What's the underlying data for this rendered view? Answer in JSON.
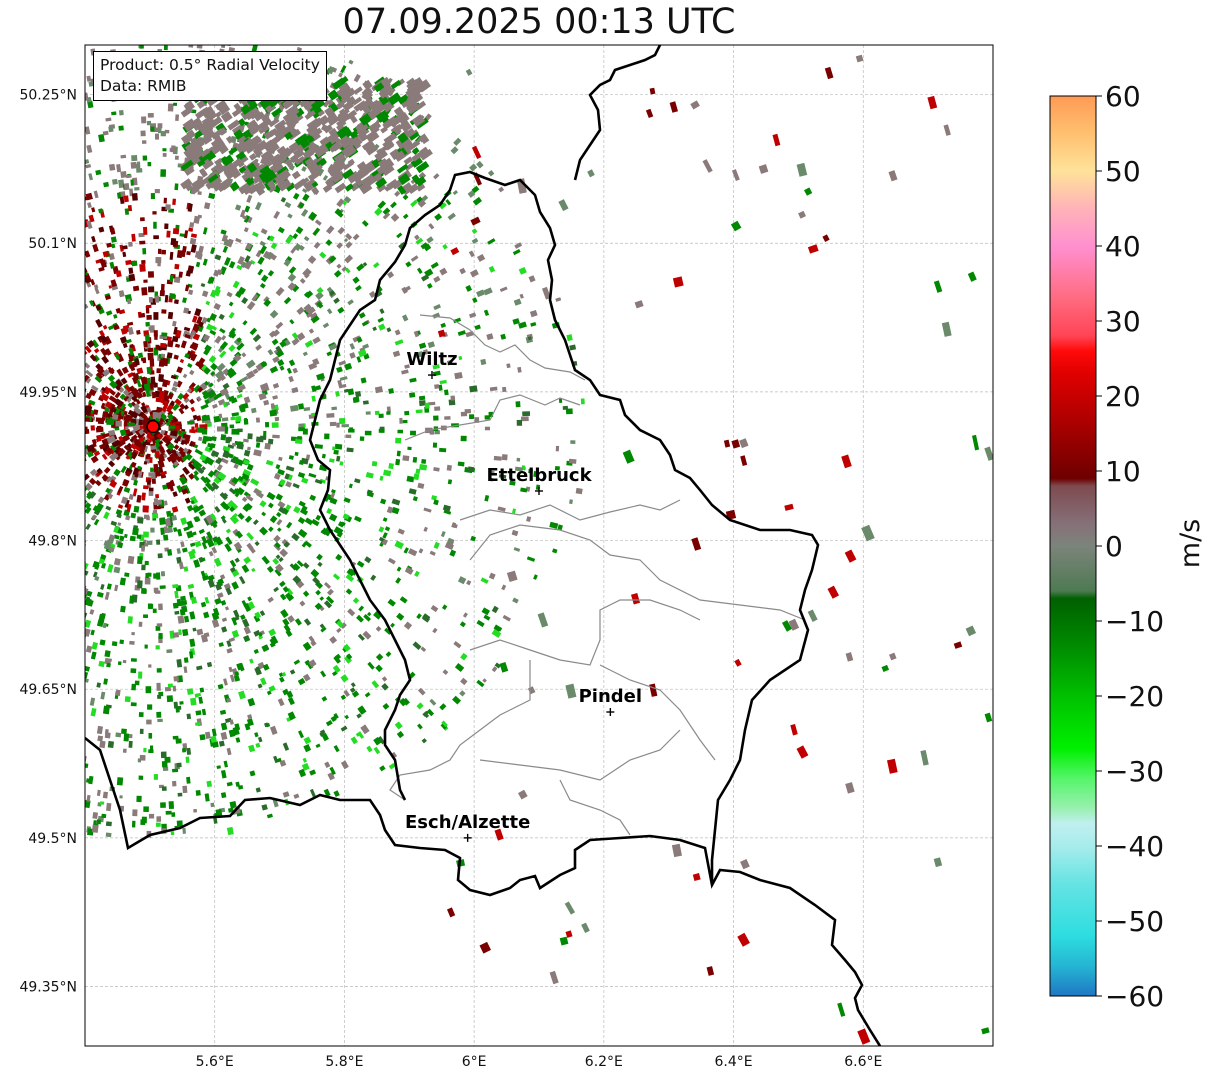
{
  "title": "07.09.2025 00:13 UTC",
  "info_box": {
    "product": "Product: 0.5° Radial Velocity",
    "data_source": "Data: RMIB"
  },
  "map": {
    "lon_range": [
      5.4,
      6.8
    ],
    "lat_range": [
      49.29,
      50.3
    ],
    "lon_ticks": [
      {
        "value": 5.6,
        "label": "5.6°E"
      },
      {
        "value": 5.8,
        "label": "5.8°E"
      },
      {
        "value": 6.0,
        "label": "6°E"
      },
      {
        "value": 6.2,
        "label": "6.2°E"
      },
      {
        "value": 6.4,
        "label": "6.4°E"
      },
      {
        "value": 6.6,
        "label": "6.6°E"
      }
    ],
    "lat_ticks": [
      {
        "value": 50.25,
        "label": "50.25°N"
      },
      {
        "value": 50.1,
        "label": "50.1°N"
      },
      {
        "value": 49.95,
        "label": "49.95°N"
      },
      {
        "value": 49.8,
        "label": "49.8°N"
      },
      {
        "value": 49.65,
        "label": "49.65°N"
      },
      {
        "value": 49.5,
        "label": "49.5°N"
      },
      {
        "value": 49.35,
        "label": "49.35°N"
      }
    ],
    "grid": true,
    "radar_site": {
      "lon": 5.505,
      "lat": 49.915
    },
    "cities": [
      {
        "name": "Wiltz",
        "lon": 5.935,
        "lat": 49.967
      },
      {
        "name": "Ettelbruck",
        "lon": 6.1,
        "lat": 49.85
      },
      {
        "name": "Pindel",
        "lon": 6.21,
        "lat": 49.627
      },
      {
        "name": "Esch/Alzette",
        "lon": 5.99,
        "lat": 49.5
      }
    ]
  },
  "colorbar": {
    "unit": "m/s",
    "range": [
      -60,
      60
    ],
    "tick_labels": [
      {
        "value": 60,
        "label": "60"
      },
      {
        "value": 50,
        "label": "50"
      },
      {
        "value": 40,
        "label": "40"
      },
      {
        "value": 30,
        "label": "30"
      },
      {
        "value": 20,
        "label": "20"
      },
      {
        "value": 10,
        "label": "10"
      },
      {
        "value": 0,
        "label": "0"
      },
      {
        "value": -10,
        "label": "−10"
      },
      {
        "value": -20,
        "label": "−20"
      },
      {
        "value": -30,
        "label": "−30"
      },
      {
        "value": -40,
        "label": "−40"
      },
      {
        "value": -50,
        "label": "−50"
      },
      {
        "value": -60,
        "label": "−60"
      }
    ],
    "color_stops": [
      {
        "v": -60,
        "c": "#1f77c4"
      },
      {
        "v": -56,
        "c": "#25b5d3"
      },
      {
        "v": -52,
        "c": "#2ddde0"
      },
      {
        "v": -45,
        "c": "#66e3e3"
      },
      {
        "v": -40,
        "c": "#a8ecec"
      },
      {
        "v": -37,
        "c": "#c0efef"
      },
      {
        "v": -35,
        "c": "#99f0b0"
      },
      {
        "v": -31,
        "c": "#55f56a"
      },
      {
        "v": -27,
        "c": "#00f000"
      },
      {
        "v": -20,
        "c": "#00c000"
      },
      {
        "v": -14,
        "c": "#009000"
      },
      {
        "v": -7,
        "c": "#006000"
      },
      {
        "v": -6,
        "c": "#4e7a52"
      },
      {
        "v": 0,
        "c": "#7c847b"
      },
      {
        "v": 3,
        "c": "#867078"
      },
      {
        "v": 8,
        "c": "#7e4a50"
      },
      {
        "v": 9,
        "c": "#6e0000"
      },
      {
        "v": 17,
        "c": "#b00000"
      },
      {
        "v": 23,
        "c": "#e00000"
      },
      {
        "v": 26,
        "c": "#ff0a0a"
      },
      {
        "v": 28,
        "c": "#ff4455"
      },
      {
        "v": 33,
        "c": "#ff6b80"
      },
      {
        "v": 40,
        "c": "#ff90d0"
      },
      {
        "v": 45,
        "c": "#ffb3b8"
      },
      {
        "v": 50,
        "c": "#ffe29a"
      },
      {
        "v": 55,
        "c": "#ffc070"
      },
      {
        "v": 60,
        "c": "#ff9a55"
      }
    ]
  },
  "colors": {
    "wind_receding_dark": "#7a0000",
    "wind_receding": "#c00000",
    "wind_approaching": "#008800",
    "wind_approaching_bright": "#22dd22",
    "clutter": "#8a7a7a",
    "radar_marker": "#ff0000"
  }
}
